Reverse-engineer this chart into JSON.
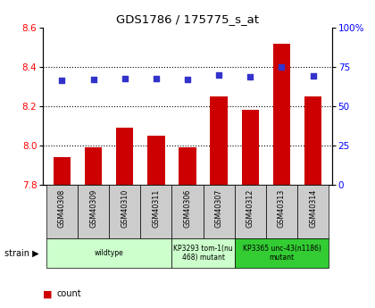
{
  "title": "GDS1786 / 175775_s_at",
  "samples": [
    "GSM40308",
    "GSM40309",
    "GSM40310",
    "GSM40311",
    "GSM40306",
    "GSM40307",
    "GSM40312",
    "GSM40313",
    "GSM40314"
  ],
  "counts": [
    7.94,
    7.99,
    8.09,
    8.05,
    7.99,
    8.25,
    8.18,
    8.52,
    8.25
  ],
  "percentiles": [
    66.5,
    67.0,
    67.5,
    67.5,
    67.0,
    70.0,
    69.0,
    75.0,
    69.5
  ],
  "ylim_left": [
    7.8,
    8.6
  ],
  "ylim_right": [
    0,
    100
  ],
  "yticks_left": [
    7.8,
    8.0,
    8.2,
    8.4,
    8.6
  ],
  "yticks_right": [
    0,
    25,
    50,
    75,
    100
  ],
  "bar_color": "#cc0000",
  "dot_color": "#3333cc",
  "strain_groups": [
    {
      "label": "wildtype",
      "start": 0,
      "end": 4,
      "color": "#ccffcc"
    },
    {
      "label": "KP3293 tom-1(nu\n468) mutant",
      "start": 4,
      "end": 6,
      "color": "#ccffcc"
    },
    {
      "label": "KP3365 unc-43(n1186)\nmutant",
      "start": 6,
      "end": 9,
      "color": "#33cc33"
    }
  ],
  "background_color": "#ffffff",
  "tick_bg_color": "#cccccc"
}
